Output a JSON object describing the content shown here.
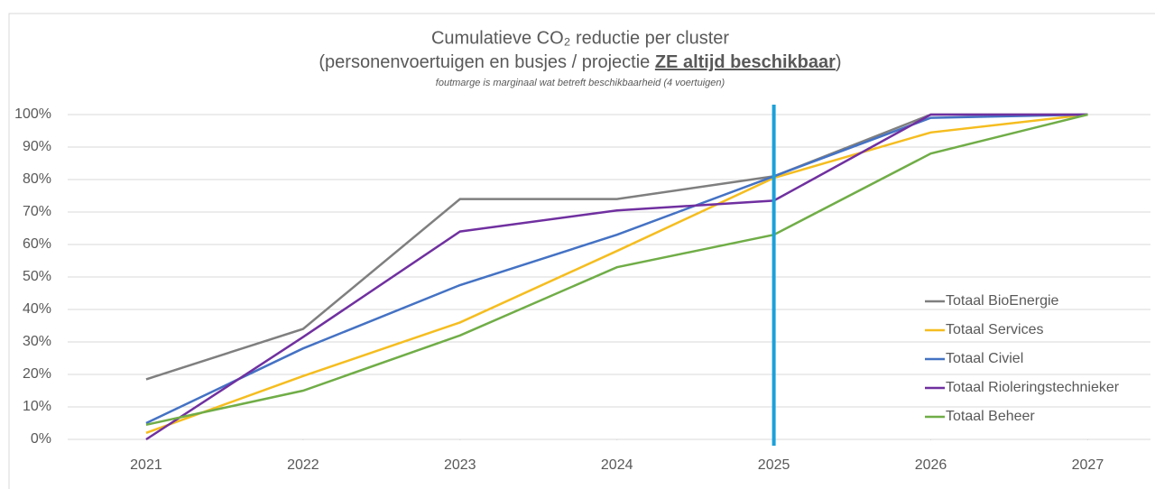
{
  "chart_data": {
    "type": "line",
    "title": "Cumulatieve CO₂ reductie per cluster",
    "subtitle_parts": [
      "(personenvoertuigen en busjes / projectie ",
      "ZE altijd beschikbaar",
      ")"
    ],
    "note": "foutmarge is marginaal wat betreft beschikbaarheid (4 voertuigen)",
    "x": [
      2021,
      2022,
      2023,
      2024,
      2025,
      2026,
      2027
    ],
    "xlim": [
      2020.5,
      2027.4
    ],
    "xticks": [
      2021,
      2022,
      2023,
      2024,
      2025,
      2026,
      2027
    ],
    "ylim": [
      0,
      100
    ],
    "yticks": [
      {
        "value": 0,
        "label": "0%"
      },
      {
        "value": 10,
        "label": "10%"
      },
      {
        "value": 20,
        "label": "20%"
      },
      {
        "value": 30,
        "label": "30%"
      },
      {
        "value": 40,
        "label": "40%"
      },
      {
        "value": 50,
        "label": "50%"
      },
      {
        "value": 60,
        "label": "60%"
      },
      {
        "value": 70,
        "label": "70%"
      },
      {
        "value": 80,
        "label": "80%"
      },
      {
        "value": 90,
        "label": "90%"
      },
      {
        "value": 100,
        "label": "100%"
      }
    ],
    "grid": true,
    "legend": "right",
    "vline": {
      "x": 2025,
      "color": "#1ca0d8"
    },
    "series": [
      {
        "name": "Totaal BioEnergie",
        "color": "#7f7f7f",
        "values": [
          18.5,
          34,
          74,
          74,
          81,
          100,
          100
        ]
      },
      {
        "name": "Totaal Services",
        "color": "#f5bd1f",
        "values": [
          2,
          19.5,
          36,
          58,
          80.5,
          94.5,
          100
        ]
      },
      {
        "name": "Totaal Civiel",
        "color": "#4472c4",
        "values": [
          5,
          28,
          47.5,
          63,
          81,
          99,
          100
        ]
      },
      {
        "name": "Totaal Rioleringstechnieker",
        "color": "#7030a0",
        "values": [
          0,
          31.5,
          64,
          70.5,
          73.5,
          100,
          100
        ]
      },
      {
        "name": "Totaal Beheer",
        "color": "#70ad47",
        "values": [
          4.5,
          15,
          32,
          53,
          63,
          88,
          100
        ]
      }
    ]
  }
}
